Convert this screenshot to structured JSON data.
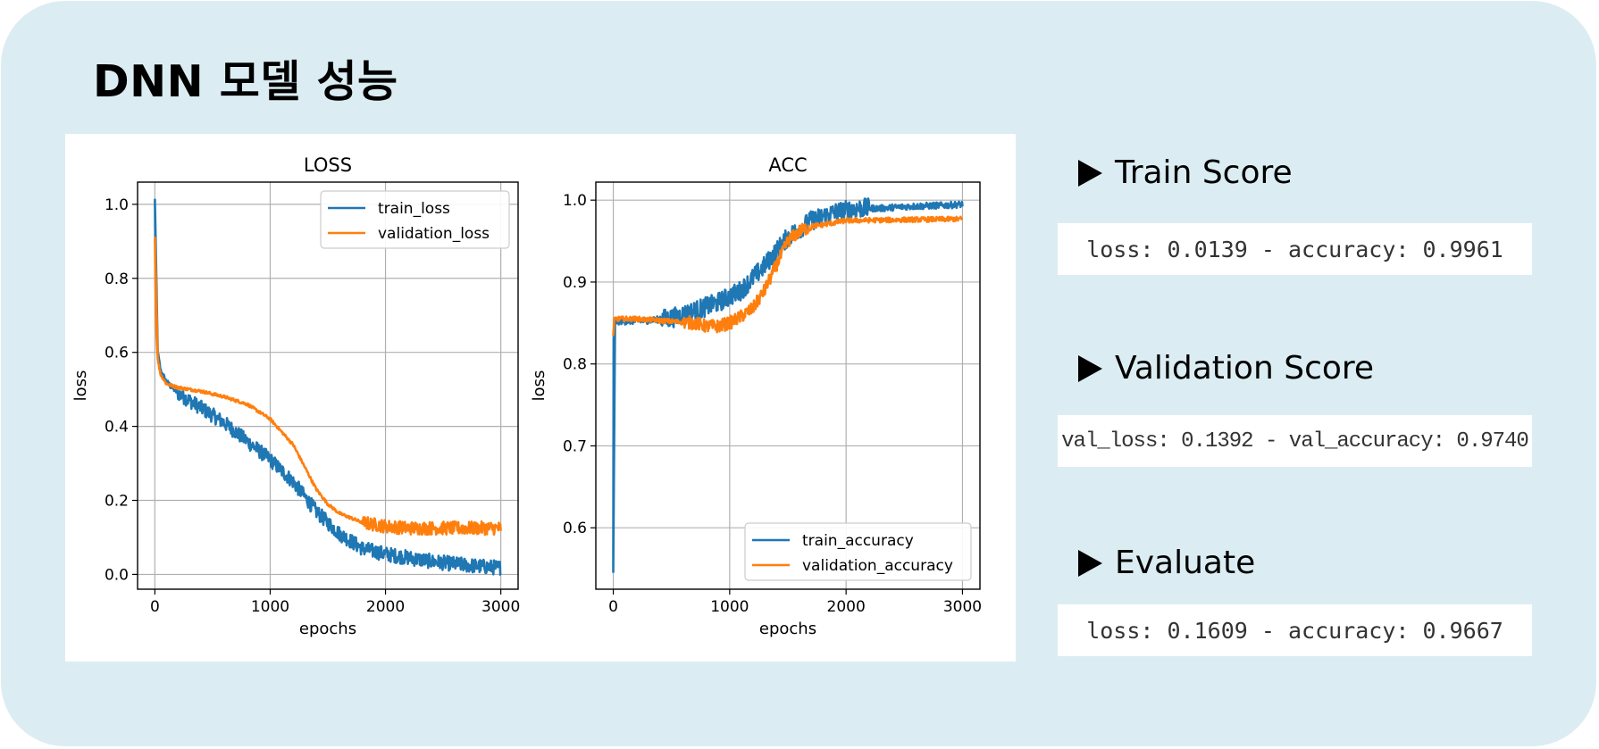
{
  "page_title": "DNN 모델 성능",
  "scores": [
    {
      "heading": "Train Score",
      "text": "loss: 0.0139 - accuracy: 0.9961"
    },
    {
      "heading": "Validation Score",
      "text": "val_loss: 0.1392 - val_accuracy: 0.9740"
    },
    {
      "heading": "Evaluate",
      "text": "loss: 0.1609 - accuracy: 0.9667"
    }
  ],
  "colors": {
    "background": "#dbedf3",
    "train": "#1f77b4",
    "validation": "#ff7f0e"
  },
  "chart_data": [
    {
      "type": "line",
      "title": "LOSS",
      "xlabel": "epochs",
      "ylabel": "loss",
      "xlim": [
        -150,
        3150
      ],
      "ylim": [
        -0.04,
        1.06
      ],
      "xticks": [
        0,
        1000,
        2000,
        3000
      ],
      "yticks": [
        0.0,
        0.2,
        0.4,
        0.6,
        0.8,
        1.0
      ],
      "ytick_labels": [
        "0.0",
        "0.2",
        "0.4",
        "0.6",
        "0.8",
        "1.0"
      ],
      "grid": true,
      "legend_position": "upper right",
      "series": [
        {
          "name": "train_loss",
          "color": "#1f77b4",
          "x": [
            0,
            10,
            25,
            50,
            100,
            200,
            400,
            600,
            800,
            1000,
            1200,
            1400,
            1600,
            1800,
            2000,
            2200,
            2400,
            2600,
            2800,
            3000
          ],
          "y": [
            1.01,
            0.7,
            0.6,
            0.55,
            0.52,
            0.49,
            0.45,
            0.41,
            0.36,
            0.31,
            0.25,
            0.17,
            0.11,
            0.07,
            0.055,
            0.045,
            0.035,
            0.028,
            0.022,
            0.018
          ]
        },
        {
          "name": "validation_loss",
          "color": "#ff7f0e",
          "x": [
            0,
            10,
            25,
            50,
            100,
            200,
            400,
            600,
            800,
            1000,
            1200,
            1300,
            1400,
            1500,
            1600,
            1800,
            2000,
            2200,
            2400,
            2600,
            2800,
            3000
          ],
          "y": [
            0.91,
            0.68,
            0.58,
            0.54,
            0.515,
            0.505,
            0.495,
            0.48,
            0.46,
            0.42,
            0.35,
            0.29,
            0.23,
            0.19,
            0.165,
            0.14,
            0.13,
            0.125,
            0.125,
            0.125,
            0.125,
            0.125
          ]
        }
      ]
    },
    {
      "type": "line",
      "title": "ACC",
      "xlabel": "epochs",
      "ylabel": "loss",
      "xlim": [
        -150,
        3150
      ],
      "ylim": [
        0.525,
        1.022
      ],
      "xticks": [
        0,
        1000,
        2000,
        3000
      ],
      "yticks": [
        0.6,
        0.7,
        0.8,
        0.9,
        1.0
      ],
      "ytick_labels": [
        "0.6",
        "0.7",
        "0.8",
        "0.9",
        "1.0"
      ],
      "grid": true,
      "legend_position": "lower right",
      "series": [
        {
          "name": "train_accuracy",
          "color": "#1f77b4",
          "x": [
            0,
            3,
            8,
            15,
            100,
            300,
            500,
            700,
            900,
            1100,
            1300,
            1500,
            1700,
            1900,
            2100,
            2300,
            2500,
            2700,
            2900,
            3000
          ],
          "y": [
            0.545,
            0.83,
            0.85,
            0.852,
            0.852,
            0.853,
            0.856,
            0.865,
            0.875,
            0.89,
            0.92,
            0.955,
            0.975,
            0.985,
            0.99,
            0.99,
            0.992,
            0.993,
            0.994,
            0.995
          ]
        },
        {
          "name": "validation_accuracy",
          "color": "#ff7f0e",
          "x": [
            0,
            10,
            30,
            200,
            500,
            700,
            800,
            900,
            1000,
            1100,
            1200,
            1300,
            1400,
            1500,
            1600,
            1700,
            1800,
            2000,
            2500,
            3000
          ],
          "y": [
            0.835,
            0.855,
            0.855,
            0.855,
            0.852,
            0.85,
            0.846,
            0.846,
            0.85,
            0.858,
            0.868,
            0.89,
            0.92,
            0.95,
            0.962,
            0.968,
            0.97,
            0.975,
            0.976,
            0.977
          ]
        }
      ]
    }
  ]
}
